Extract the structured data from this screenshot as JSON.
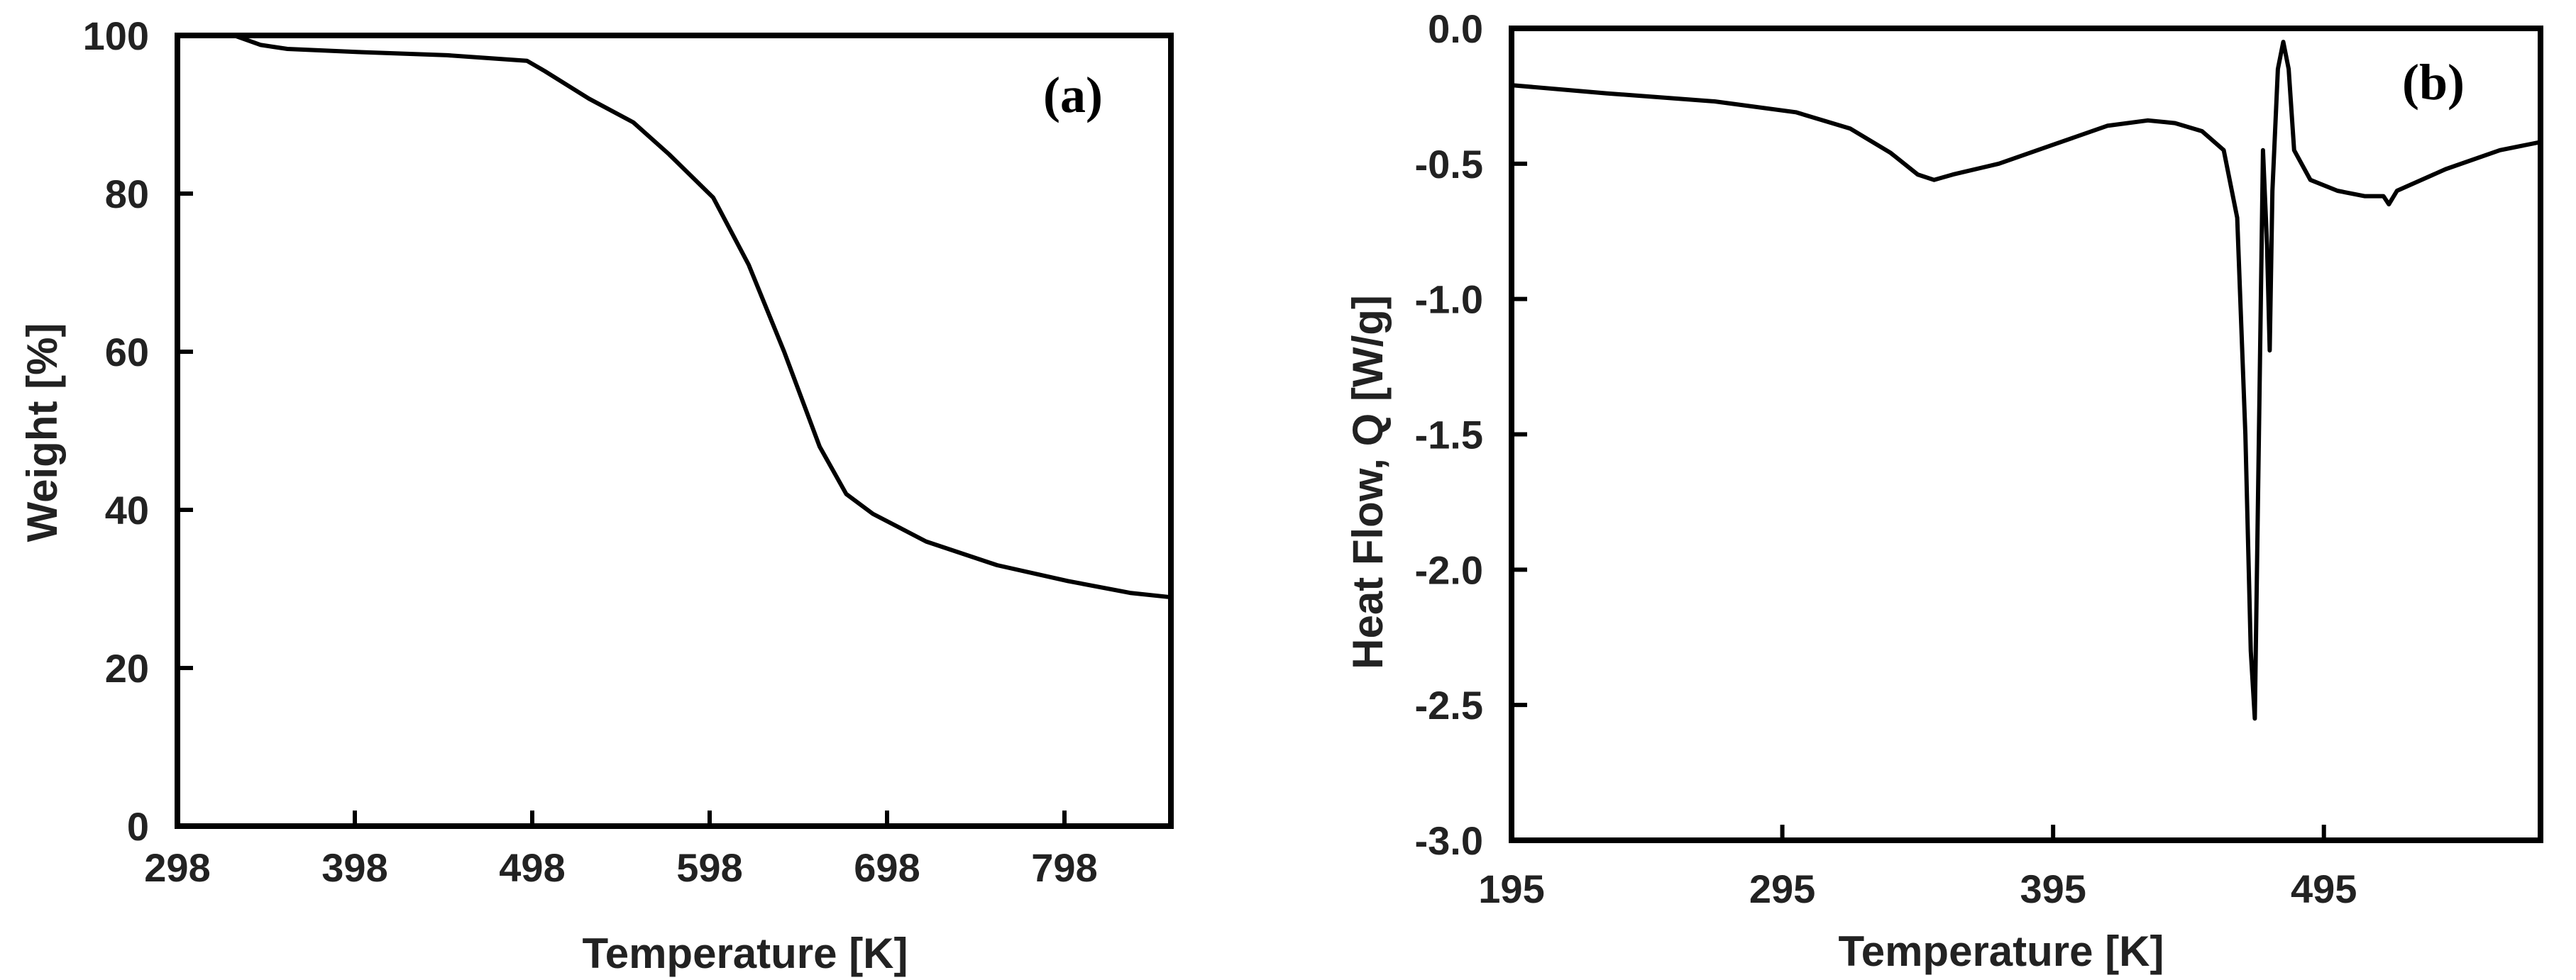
{
  "chart_data": [
    {
      "id": "a",
      "type": "line",
      "panel_label": "(a)",
      "xlabel": "Temperature [K]",
      "ylabel": "Weight [%]",
      "xlim": [
        298,
        858
      ],
      "ylim": [
        0,
        100
      ],
      "x_ticks": [
        298,
        398,
        498,
        598,
        698,
        798
      ],
      "y_ticks": [
        0,
        20,
        40,
        60,
        80,
        100
      ],
      "grid": false,
      "series": [
        {
          "name": "Weight",
          "points": [
            [
              330,
              100
            ],
            [
              345,
              98.8
            ],
            [
              360,
              98.3
            ],
            [
              400,
              97.9
            ],
            [
              450,
              97.5
            ],
            [
              495,
              96.8
            ],
            [
              505,
              95.5
            ],
            [
              530,
              92
            ],
            [
              555,
              89
            ],
            [
              575,
              85
            ],
            [
              600,
              79.5
            ],
            [
              620,
              71
            ],
            [
              640,
              60
            ],
            [
              660,
              48
            ],
            [
              675,
              42
            ],
            [
              690,
              39.5
            ],
            [
              720,
              36
            ],
            [
              760,
              33
            ],
            [
              800,
              31
            ],
            [
              835,
              29.5
            ],
            [
              856,
              29
            ]
          ]
        }
      ]
    },
    {
      "id": "b",
      "type": "line",
      "panel_label": "(b)",
      "xlabel": "Temperature [K]",
      "ylabel": "Heat Flow,  Q [W/g]",
      "xlim": [
        195,
        575
      ],
      "ylim": [
        -3.0,
        0.0
      ],
      "x_ticks": [
        195,
        295,
        395,
        495
      ],
      "x_tick_labels": [
        "195",
        "295",
        "395",
        "495"
      ],
      "y_ticks": [
        0.0,
        -0.5,
        -1.0,
        -1.5,
        -2.0,
        -2.5,
        -3.0
      ],
      "y_tick_labels": [
        "0.0",
        "-0.5",
        "-1.0",
        "-1.5",
        "-2.0",
        "-2.5",
        "-3.0"
      ],
      "grid": false,
      "series": [
        {
          "name": "Heat Flow",
          "points": [
            [
              195,
              -0.21
            ],
            [
              230,
              -0.24
            ],
            [
              270,
              -0.27
            ],
            [
              300,
              -0.31
            ],
            [
              320,
              -0.37
            ],
            [
              335,
              -0.46
            ],
            [
              345,
              -0.54
            ],
            [
              351,
              -0.56
            ],
            [
              358,
              -0.54
            ],
            [
              375,
              -0.5
            ],
            [
              395,
              -0.43
            ],
            [
              415,
              -0.36
            ],
            [
              430,
              -0.34
            ],
            [
              440,
              -0.35
            ],
            [
              450,
              -0.38
            ],
            [
              458,
              -0.45
            ],
            [
              463,
              -0.7
            ],
            [
              466,
              -1.5
            ],
            [
              468,
              -2.3
            ],
            [
              469.5,
              -2.55
            ],
            [
              471,
              -1.5
            ],
            [
              472.5,
              -0.45
            ],
            [
              474,
              -0.8
            ],
            [
              475,
              -1.19
            ],
            [
              476,
              -0.6
            ],
            [
              478,
              -0.15
            ],
            [
              480,
              -0.05
            ],
            [
              482,
              -0.15
            ],
            [
              484,
              -0.45
            ],
            [
              490,
              -0.56
            ],
            [
              500,
              -0.6
            ],
            [
              510,
              -0.62
            ],
            [
              517,
              -0.62
            ],
            [
              519,
              -0.65
            ],
            [
              522,
              -0.6
            ],
            [
              540,
              -0.52
            ],
            [
              560,
              -0.45
            ],
            [
              575,
              -0.42
            ]
          ]
        }
      ]
    }
  ]
}
